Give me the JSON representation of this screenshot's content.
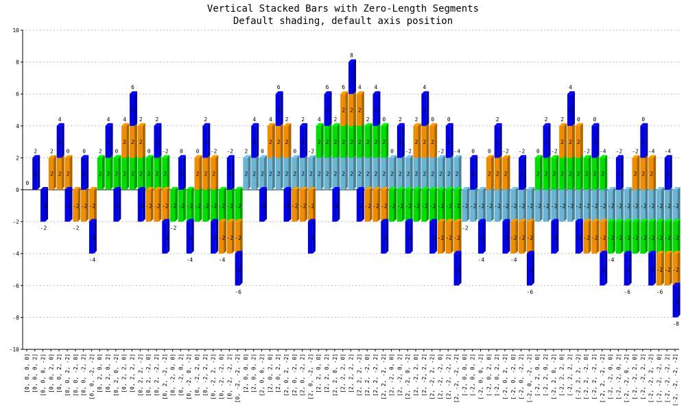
{
  "chart_data": {
    "type": "bar",
    "stacked": true,
    "title": "Vertical Stacked Bars with Zero-Length Segments",
    "subtitle": "Default shading, default axis position",
    "xlabel": "",
    "ylabel": "",
    "ylim": [
      -10,
      10
    ],
    "yticks": [
      -10,
      -8,
      -6,
      -4,
      -2,
      0,
      2,
      4,
      6,
      8,
      10
    ],
    "grid": true,
    "legend": "none",
    "series_colors": [
      "#6ab4d4",
      "#00dd00",
      "#f08c00",
      "#0000e6"
    ],
    "series_values": [
      -2,
      0,
      2
    ],
    "categories": [
      "[0, 0, 0, 0]",
      "[0, 0, 0, 2]",
      "[0, 0, 0, -2]",
      "[0, 0, 2, 0]",
      "[0, 0, 2, 2]",
      "[0, 0, 2, -2]",
      "[0, 0, -2, 0]",
      "[0, 0, -2, 2]",
      "[0, 0, -2, -2]",
      "[0, 2, 0, 0]",
      "[0, 2, 0, 2]",
      "[0, 2, 0, -2]",
      "[0, 2, 2, 0]",
      "[0, 2, 2, 2]",
      "[0, 2, 2, -2]",
      "[0, 2, -2, 0]",
      "[0, 2, -2, 2]",
      "[0, 2, -2, -2]",
      "[0, -2, 0, 0]",
      "[0, -2, 0, 2]",
      "[0, -2, 0, -2]",
      "[0, -2, 2, 0]",
      "[0, -2, 2, 2]",
      "[0, -2, 2, -2]",
      "[0, -2, -2, 0]",
      "[0, -2, -2, 2]",
      "[0, -2, -2, -2]",
      "[2, 0, 0, 0]",
      "[2, 0, 0, 2]",
      "[2, 0, 0, -2]",
      "[2, 0, 2, 0]",
      "[2, 0, 2, 2]",
      "[2, 0, 2, -2]",
      "[2, 0, -2, 0]",
      "[2, 0, -2, 2]",
      "[2, 0, -2, -2]",
      "[2, 2, 0, 0]",
      "[2, 2, 0, 2]",
      "[2, 2, 0, -2]",
      "[2, 2, 2, 0]",
      "[2, 2, 2, 2]",
      "[2, 2, 2, -2]",
      "[2, 2, -2, 0]",
      "[2, 2, -2, 2]",
      "[2, 2, -2, -2]",
      "[2, -2, 0, 0]",
      "[2, -2, 0, 2]",
      "[2, -2, 0, -2]",
      "[2, -2, 2, 0]",
      "[2, -2, 2, 2]",
      "[2, -2, 2, -2]",
      "[2, -2, -2, 0]",
      "[2, -2, -2, 2]",
      "[2, -2, -2, -2]",
      "[-2, 0, 0, 0]",
      "[-2, 0, 0, 2]",
      "[-2, 0, 0, -2]",
      "[-2, 0, 2, 0]",
      "[-2, 0, 2, 2]",
      "[-2, 0, 2, -2]",
      "[-2, 0, -2, 0]",
      "[-2, 0, -2, 2]",
      "[-2, 0, -2, -2]",
      "[-2, 2, 0, 0]",
      "[-2, 2, 0, 2]",
      "[-2, 2, 0, -2]",
      "[-2, 2, 2, 0]",
      "[-2, 2, 2, 2]",
      "[-2, 2, 2, -2]",
      "[-2, 2, -2, 0]",
      "[-2, 2, -2, 2]",
      "[-2, 2, -2, -2]",
      "[-2, -2, 0, 0]",
      "[-2, -2, 0, 2]",
      "[-2, -2, 0, -2]",
      "[-2, -2, 2, 0]",
      "[-2, -2, 2, 2]",
      "[-2, -2, 2, -2]",
      "[-2, -2, -2, 0]",
      "[-2, -2, -2, 2]",
      "[-2, -2, -2, -2]"
    ],
    "data_labels": "each non-zero segment shows its value inside; stack total shown above positive stacks and below negative stacks"
  }
}
